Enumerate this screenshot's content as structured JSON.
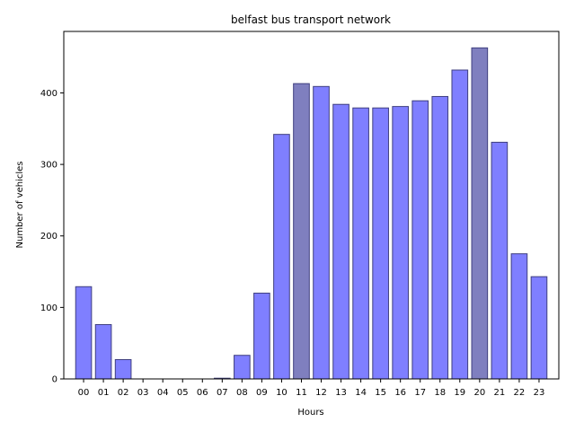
{
  "chart_data": {
    "type": "bar",
    "title": "belfast bus transport network",
    "xlabel": "Hours",
    "ylabel": "Number of vehicles",
    "categories": [
      "00",
      "01",
      "02",
      "03",
      "04",
      "05",
      "06",
      "07",
      "08",
      "09",
      "10",
      "11",
      "12",
      "13",
      "14",
      "15",
      "16",
      "17",
      "18",
      "19",
      "20",
      "21",
      "22",
      "23"
    ],
    "values": [
      129,
      76,
      27,
      0,
      0,
      0,
      0,
      1,
      33,
      120,
      342,
      413,
      409,
      384,
      379,
      379,
      381,
      389,
      395,
      432,
      463,
      331,
      175,
      143
    ],
    "highlighted": [
      "11",
      "20"
    ],
    "ylim": [
      0,
      486
    ],
    "yticks": [
      0,
      100,
      200,
      300,
      400
    ],
    "grid": false,
    "colors": {
      "bar": "#7f7fff",
      "bar_highlight": "#7f7fbf",
      "bar_edge": "#3f3f7f"
    }
  }
}
